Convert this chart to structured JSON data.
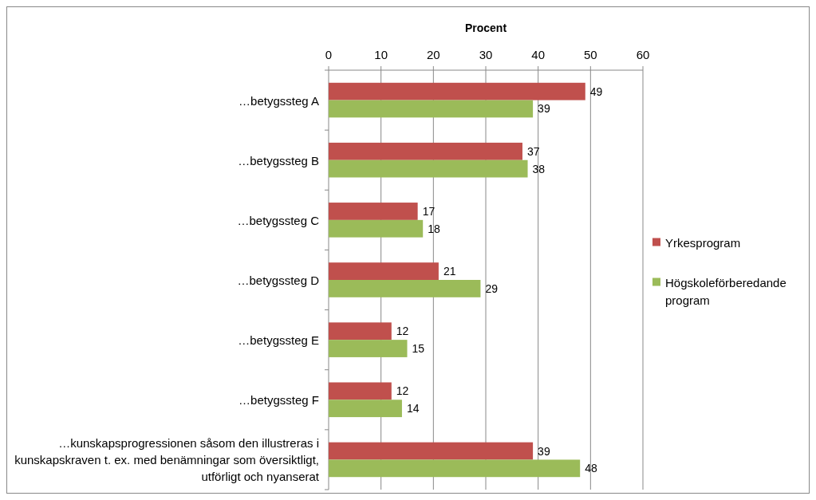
{
  "chart_data": {
    "type": "bar",
    "orientation": "horizontal",
    "xlabel": "Procent",
    "categories": [
      "…betygssteg A",
      "…betygssteg B",
      "…betygssteg C",
      "…betygssteg D",
      "…betygssteg E",
      "…betygssteg F",
      "…kunskapsprogressionen såsom den illustreras i kunskapskraven t. ex. med benämningar som översiktligt, utförligt och nyanserat"
    ],
    "series": [
      {
        "name": "Yrkesprogram",
        "color": "#c0504d",
        "values": [
          49,
          37,
          17,
          21,
          12,
          12,
          39
        ]
      },
      {
        "name": "Högskoleförberedande program",
        "color": "#9bbb59",
        "values": [
          39,
          38,
          18,
          29,
          15,
          14,
          48
        ]
      }
    ],
    "xlim": [
      0,
      60
    ],
    "xticks": [
      0,
      10,
      20,
      30,
      40,
      50,
      60
    ],
    "grid": "x",
    "legend": "right",
    "data_labels": true
  }
}
